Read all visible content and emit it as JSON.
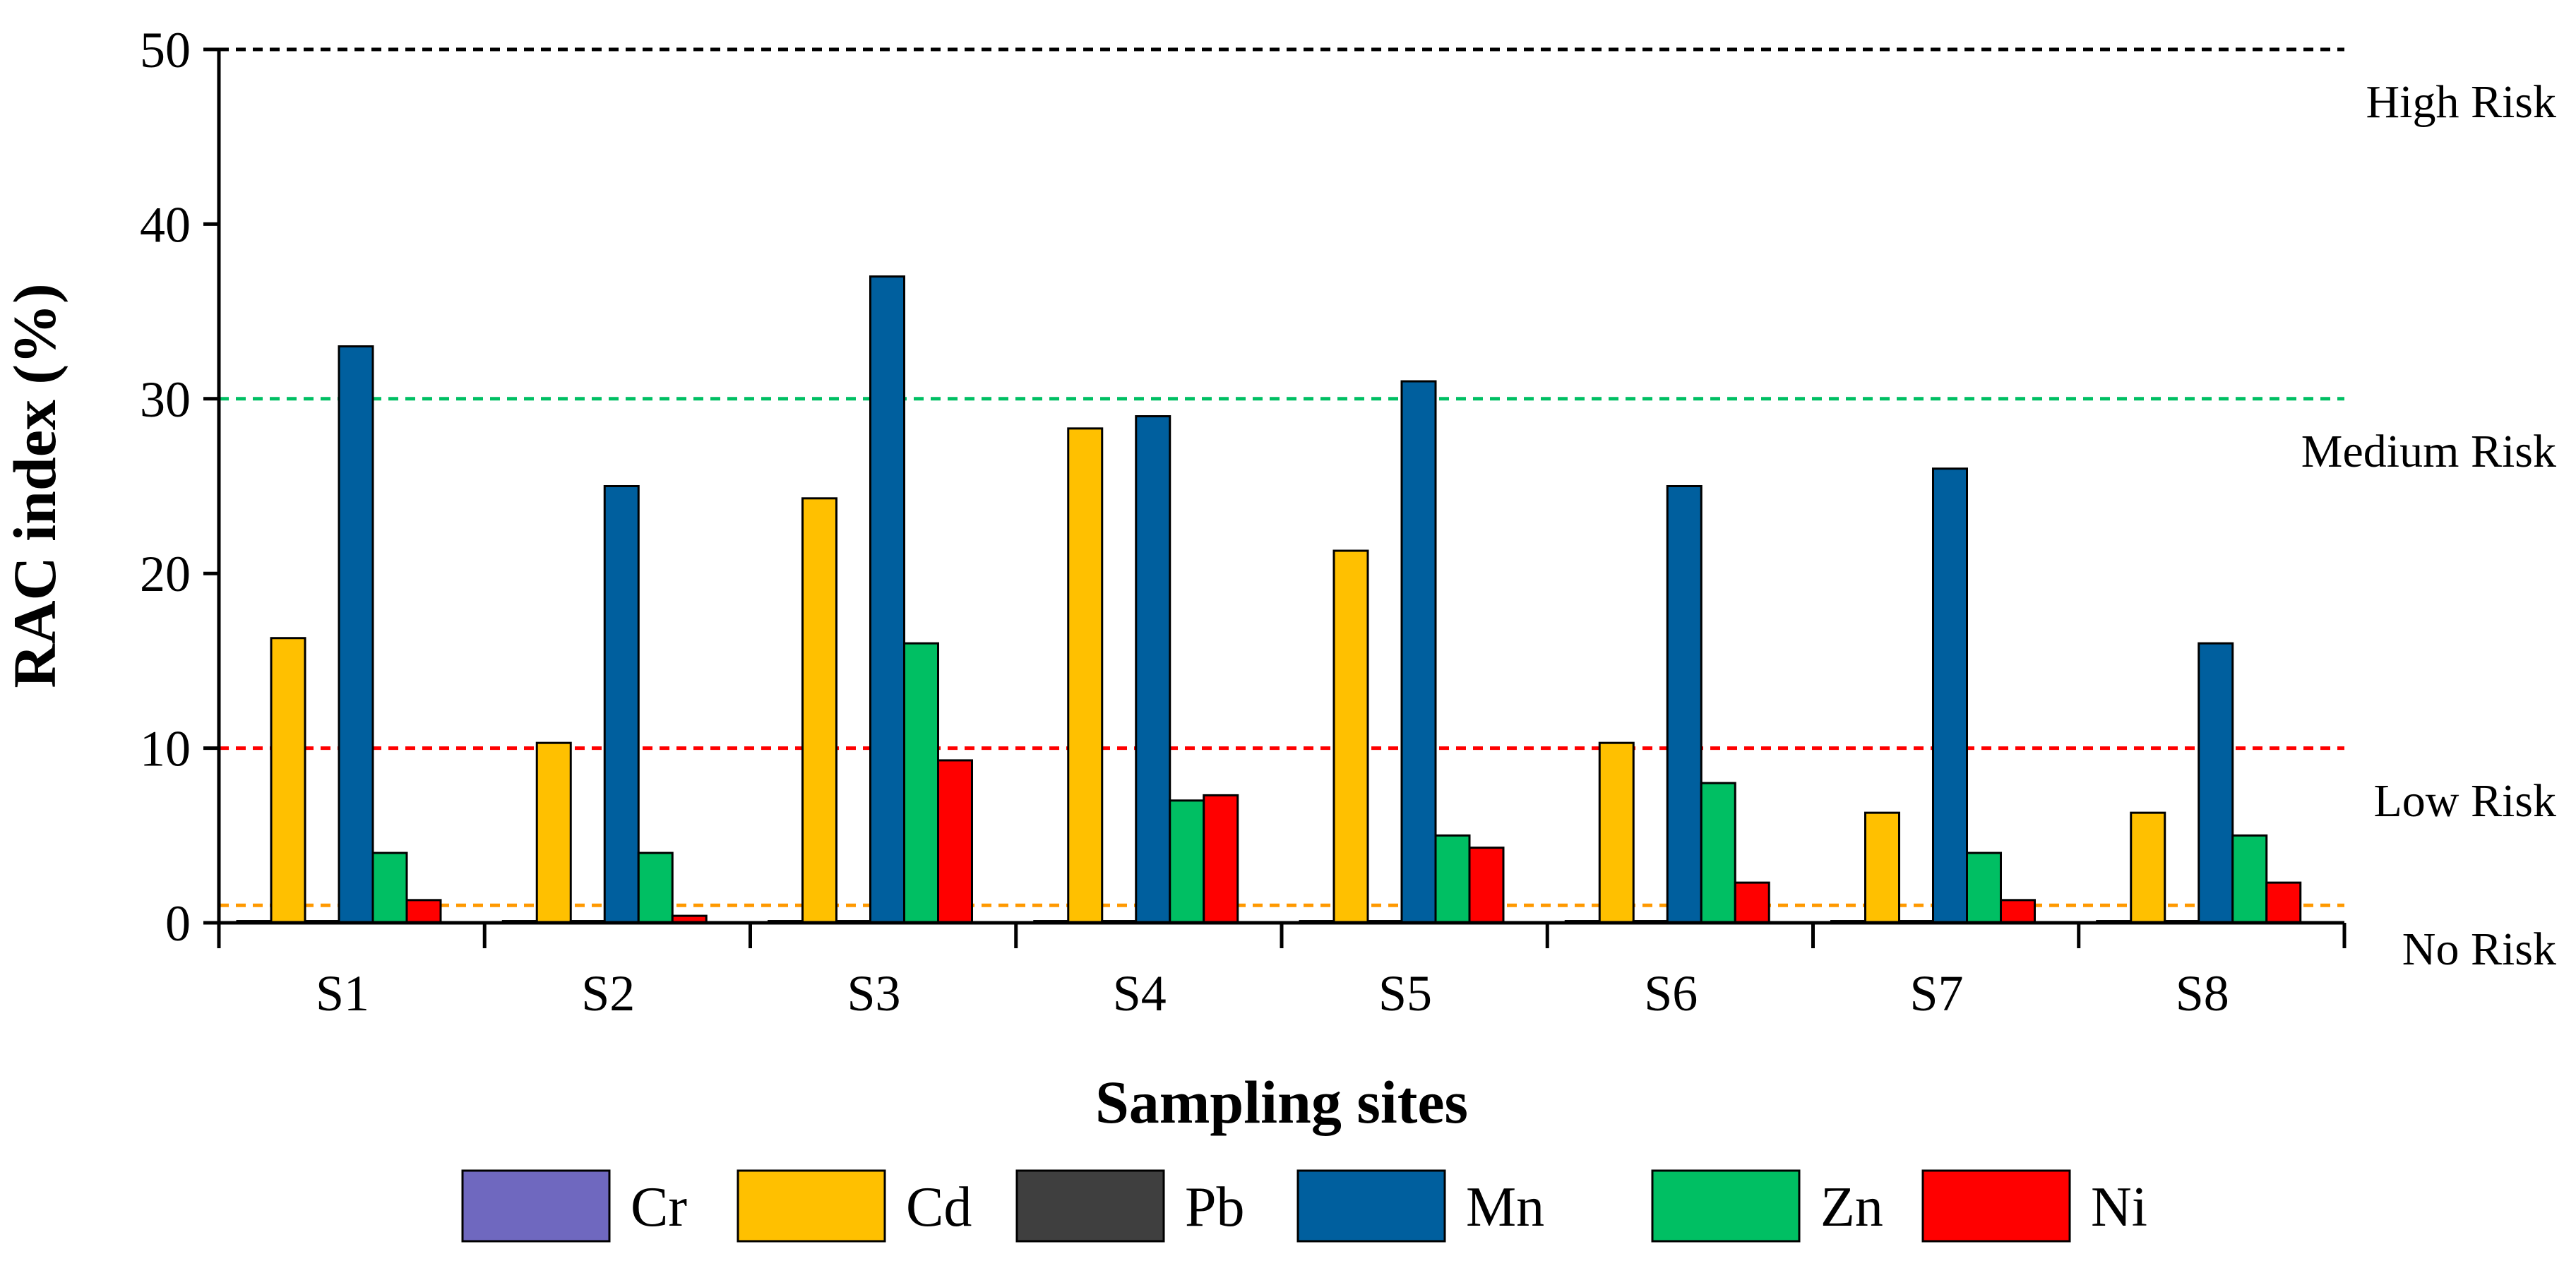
{
  "chart_data": {
    "type": "bar",
    "title": "",
    "xlabel": "Sampling sites",
    "ylabel": "RAC index (%)",
    "ylim": [
      0,
      50
    ],
    "yticks": [
      "0",
      "10",
      "20",
      "30",
      "40",
      "50"
    ],
    "grid": false,
    "legend_position": "bottom",
    "categories": [
      "S1",
      "S2",
      "S3",
      "S4",
      "S5",
      "S6",
      "S7",
      "S8"
    ],
    "series": [
      {
        "name": "Cr",
        "color": "#6F68BF",
        "values": [
          0.1,
          0.1,
          0.1,
          0.1,
          0.1,
          0.1,
          0.1,
          0.1
        ]
      },
      {
        "name": "Cd",
        "color": "#FFC000",
        "values": [
          16.3,
          10.3,
          24.3,
          28.3,
          21.3,
          10.3,
          6.3,
          6.3
        ]
      },
      {
        "name": "Pb",
        "color": "#3F3F3F",
        "values": [
          0.1,
          0.1,
          0.1,
          0.1,
          0.1,
          0.1,
          0.1,
          0.1
        ]
      },
      {
        "name": "Mn",
        "color": "#005F9E",
        "values": [
          33,
          25,
          37,
          29,
          31,
          25,
          26,
          16
        ]
      },
      {
        "name": "Zn",
        "color": "#00BF63",
        "values": [
          4,
          4,
          16,
          7,
          5,
          8,
          4,
          5
        ]
      },
      {
        "name": "Ni",
        "color": "#FF0000",
        "values": [
          1.3,
          0.4,
          9.3,
          7.3,
          4.3,
          2.3,
          1.3,
          2.3
        ]
      }
    ],
    "thresholds": [
      {
        "value": 50,
        "color": "#000000"
      },
      {
        "value": 30,
        "color": "#00BF63"
      },
      {
        "value": 10,
        "color": "#FF0000"
      },
      {
        "value": 1,
        "color": "#FF9900"
      }
    ],
    "risk_labels": [
      {
        "text": "High Risk",
        "level": 47
      },
      {
        "text": "Medium Risk",
        "level": 27
      },
      {
        "text": "Low Risk",
        "level": 7
      },
      {
        "text": "No Risk",
        "level": -1.5
      }
    ]
  }
}
